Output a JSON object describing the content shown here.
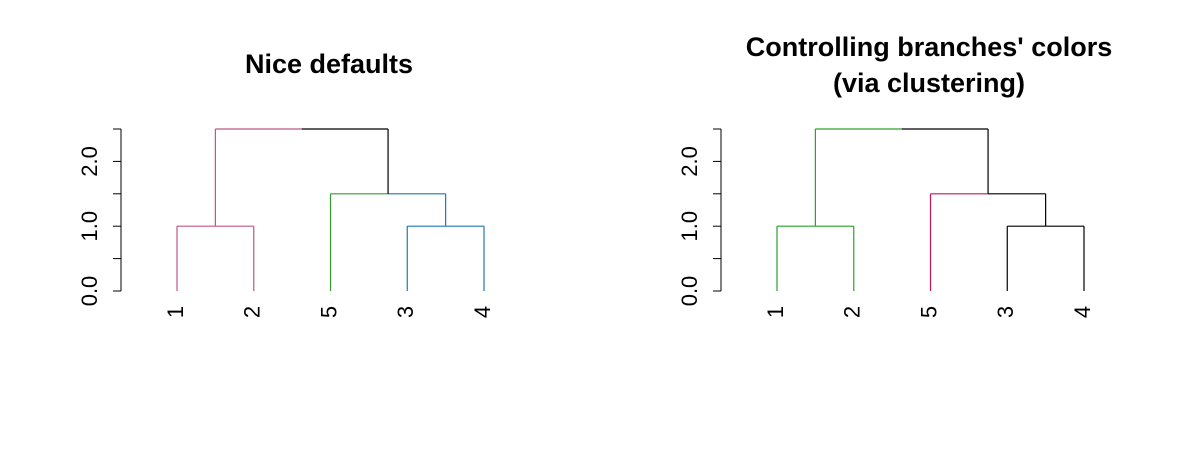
{
  "chart_data": [
    {
      "type": "dendrogram",
      "title": [
        "Nice defaults"
      ],
      "ylim": [
        0,
        2.5
      ],
      "yticks": [
        0.0,
        0.5,
        1.0,
        1.5,
        2.0,
        2.5
      ],
      "ytick_labels": [
        "0.0",
        "1.0",
        "2.0"
      ],
      "ytick_label_values": [
        0.0,
        1.0,
        2.0
      ],
      "leaf_order": [
        "1",
        "2",
        "5",
        "3",
        "4"
      ],
      "merges": [
        {
          "left": "1",
          "right": "2",
          "height": 1.0,
          "color": "#c15686"
        },
        {
          "left": "3",
          "right": "4",
          "height": 1.0,
          "color": "#1f78b4"
        },
        {
          "left": "5",
          "right": "3,4",
          "height": 1.5,
          "color": "#33a02c",
          "right_color": "#1f78b4"
        },
        {
          "left": "1,2",
          "right": "5,3,4",
          "height": 2.5,
          "color": "#c15686",
          "right_color": "#000000"
        }
      ],
      "leaf_colors": {
        "1": "#c15686",
        "2": "#c15686",
        "5": "#33a02c",
        "3": "#1f78b4",
        "4": "#1f78b4"
      },
      "grid": false,
      "legend": "none"
    },
    {
      "type": "dendrogram",
      "title": [
        "Controlling branches' colors",
        "(via clustering)"
      ],
      "ylim": [
        0,
        2.5
      ],
      "yticks": [
        0.0,
        0.5,
        1.0,
        1.5,
        2.0,
        2.5
      ],
      "ytick_labels": [
        "0.0",
        "1.0",
        "2.0"
      ],
      "ytick_label_values": [
        0.0,
        1.0,
        2.0
      ],
      "leaf_order": [
        "1",
        "2",
        "5",
        "3",
        "4"
      ],
      "merges": [
        {
          "left": "1",
          "right": "2",
          "height": 1.0,
          "color": "#2ca02c"
        },
        {
          "left": "3",
          "right": "4",
          "height": 1.0,
          "color": "#000000"
        },
        {
          "left": "5",
          "right": "3,4",
          "height": 1.5,
          "color": "#c2185b",
          "right_color": "#000000"
        },
        {
          "left": "1,2",
          "right": "5,3,4",
          "height": 2.5,
          "color": "#2ca02c",
          "right_color": "#000000"
        }
      ],
      "leaf_colors": {
        "1": "#2ca02c",
        "2": "#2ca02c",
        "5": "#c2185b",
        "3": "#000000",
        "4": "#000000"
      },
      "grid": false,
      "legend": "none"
    }
  ]
}
